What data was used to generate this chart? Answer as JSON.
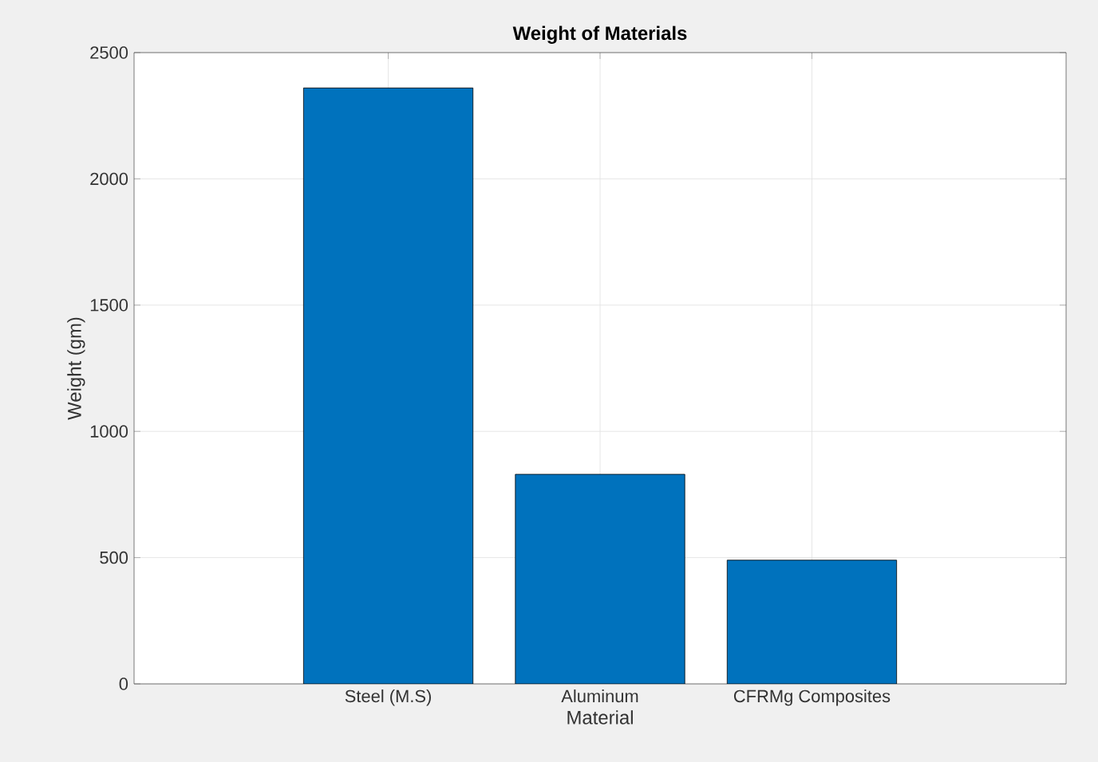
{
  "chart_data": {
    "type": "bar",
    "title": "Weight of Materials",
    "xlabel": "Material",
    "ylabel": "Weight (gm)",
    "categories": [
      "Steel (M.S)",
      "Aluminum",
      "CFRMg Composites"
    ],
    "values": [
      2360,
      830,
      490
    ],
    "color": "#0072bd",
    "ylim": [
      0,
      2500
    ],
    "yticks": [
      0,
      500,
      1000,
      1500,
      2000,
      2500
    ],
    "grid": true
  }
}
